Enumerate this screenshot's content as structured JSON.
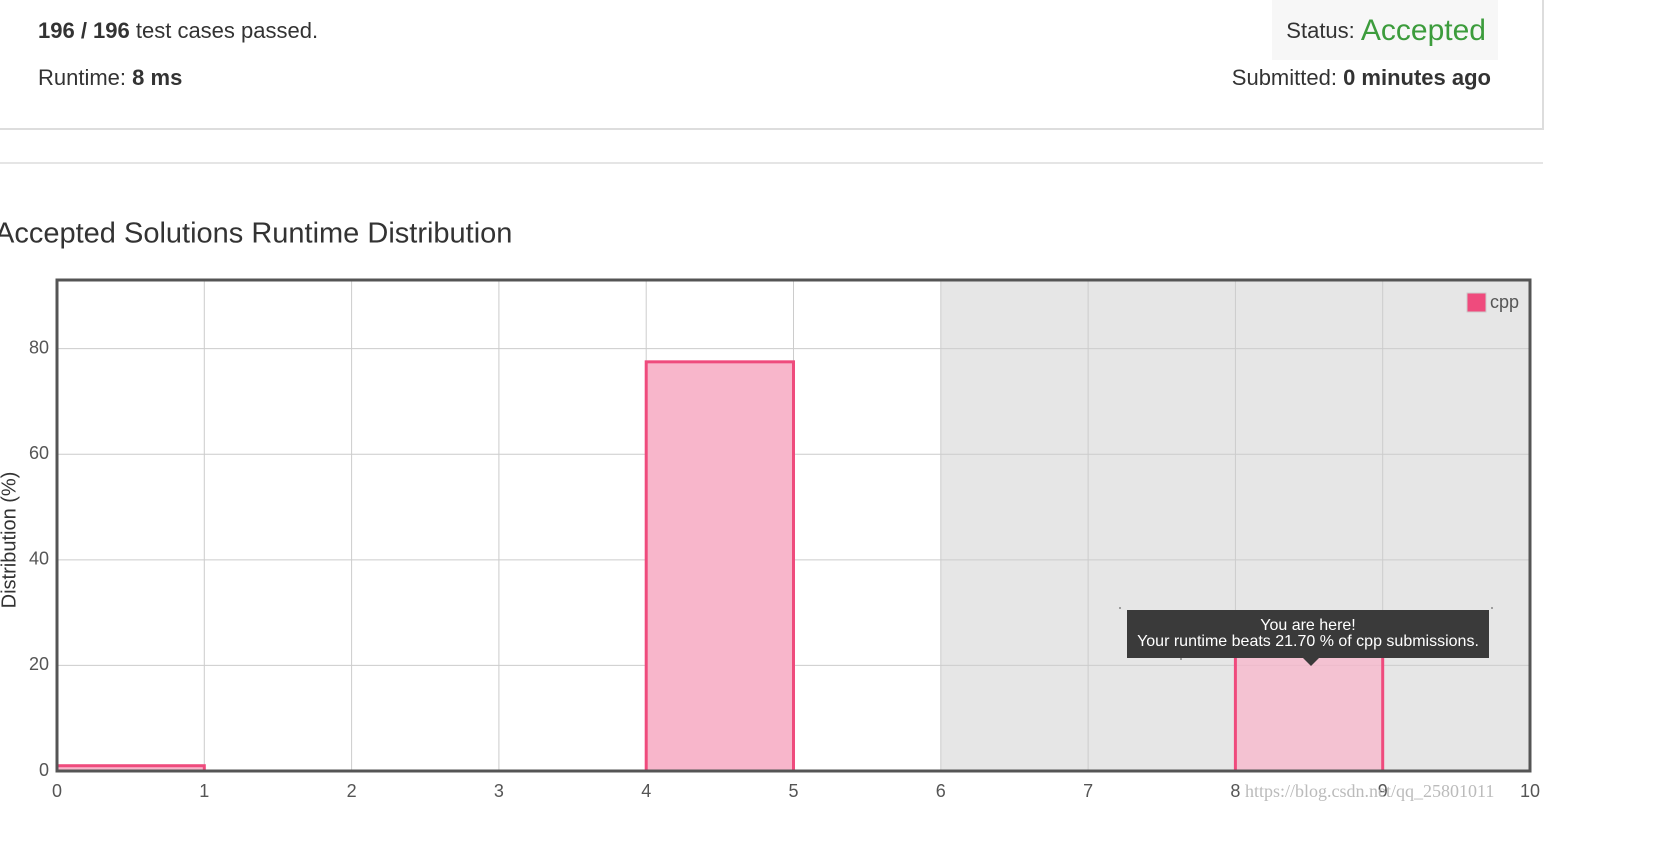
{
  "summary": {
    "passed": "196 / 196",
    "passed_text": "test cases passed.",
    "runtime_label": "Runtime:",
    "runtime": "8 ms",
    "status_label": "Status:",
    "status": "Accepted",
    "submitted_label": "Submitted:",
    "submitted": "0 minutes ago"
  },
  "chart_data": {
    "type": "histogram",
    "title": "Accepted Solutions Runtime Distribution",
    "y_label": "Distribution (%)",
    "bins": [
      0,
      1,
      2,
      3,
      4,
      5,
      6,
      7,
      8,
      9,
      10
    ],
    "series": [
      {
        "name": "cpp",
        "color": "#ef4b7d",
        "fill": "#f8b6cb",
        "values": [
          1,
          0,
          0,
          0,
          77.5,
          0,
          0,
          0,
          21.7,
          0
        ]
      }
    ],
    "xlim": [
      0,
      10
    ],
    "xticks": [
      0,
      1,
      2,
      3,
      4,
      5,
      6,
      7,
      8,
      9,
      10
    ],
    "ylim": [
      0,
      93
    ],
    "yticks": [
      0,
      20,
      40,
      60,
      80
    ],
    "grid": true,
    "highlight_xlim": [
      6,
      10
    ],
    "highlight_color": "#e6e6e6",
    "tooltip": {
      "line1": "You are here!",
      "line2": "Your runtime beats 21.70 % of cpp submissions."
    },
    "watermark": "https://blog.csdn.net/qq_25801011"
  }
}
